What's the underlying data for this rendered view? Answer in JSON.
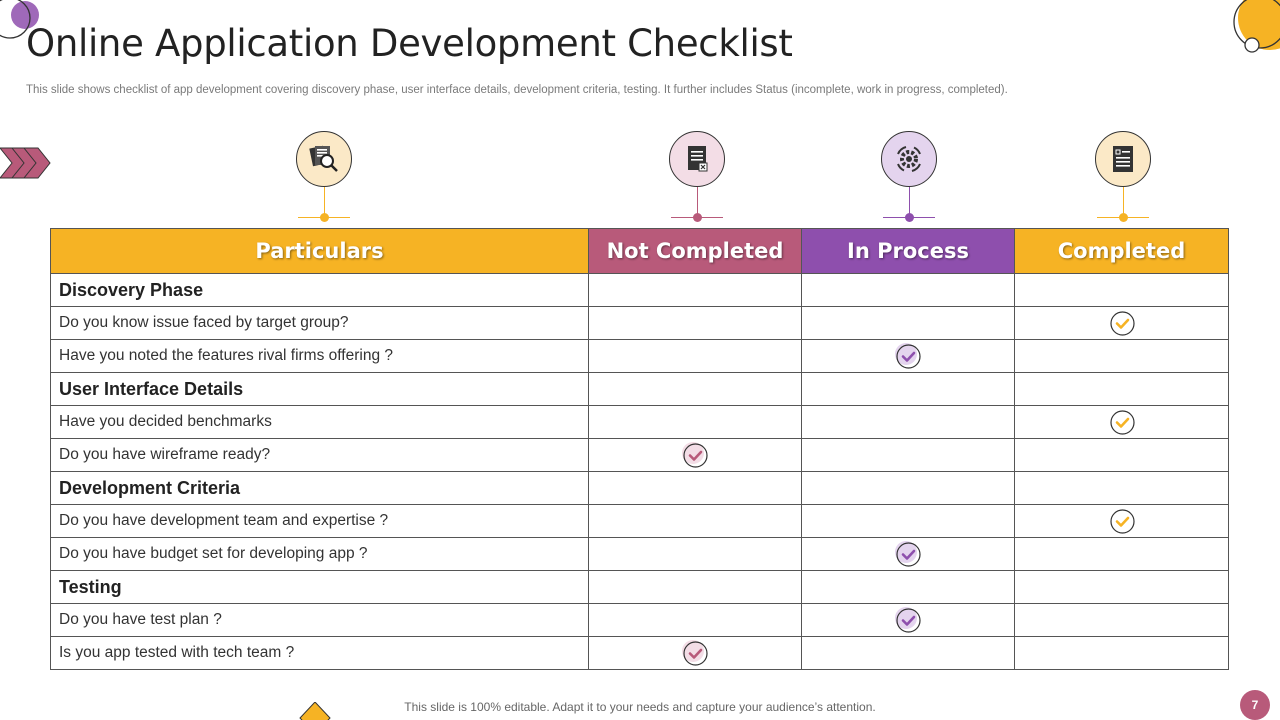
{
  "slide": {
    "title": "Online Application Development Checklist",
    "subtitle": "This slide shows checklist of app development covering discovery phase, user interface details, development criteria, testing. It further includes Status (incomplete,  work in progress, completed).",
    "footer": "This slide is 100% editable. Adapt it to your needs and capture your audience’s attention.",
    "page_number": "7"
  },
  "colors": {
    "yellow": "#f6b324",
    "rose": "#b85a7a",
    "purple": "#8e4fad",
    "pink_light": "#f3dde6",
    "purple_light": "#e4d4ee",
    "yellow_light": "#fbe9c7"
  },
  "icons": [
    {
      "name": "research-documents-icon",
      "color": "yellow"
    },
    {
      "name": "document-cancel-icon",
      "color": "rose"
    },
    {
      "name": "gear-process-icon",
      "color": "purple"
    },
    {
      "name": "checklist-document-icon",
      "color": "yellow"
    }
  ],
  "table": {
    "headers": [
      "Particulars",
      "Not Completed",
      "In Process",
      "Completed"
    ],
    "rows": [
      {
        "type": "section",
        "label": "Discovery Phase"
      },
      {
        "type": "item",
        "label": "Do you know issue faced by target group?",
        "status": "completed"
      },
      {
        "type": "item",
        "label": "Have you noted the features rival firms offering ?",
        "status": "in_process"
      },
      {
        "type": "section",
        "label": "User Interface Details"
      },
      {
        "type": "item",
        "label": "Have you decided benchmarks",
        "status": "completed"
      },
      {
        "type": "item",
        "label": "Do you have wireframe ready?",
        "status": "not_completed"
      },
      {
        "type": "section",
        "label": "Development Criteria"
      },
      {
        "type": "item",
        "label": "Do you have development team and expertise ?",
        "status": "completed"
      },
      {
        "type": "item",
        "label": "Do you have budget set for developing app ?",
        "status": "in_process"
      },
      {
        "type": "section",
        "label": "Testing"
      },
      {
        "type": "item",
        "label": "Do you have test plan ?",
        "status": "in_process"
      },
      {
        "type": "item",
        "label": "Is you app tested with tech team ?",
        "status": "not_completed"
      }
    ]
  }
}
